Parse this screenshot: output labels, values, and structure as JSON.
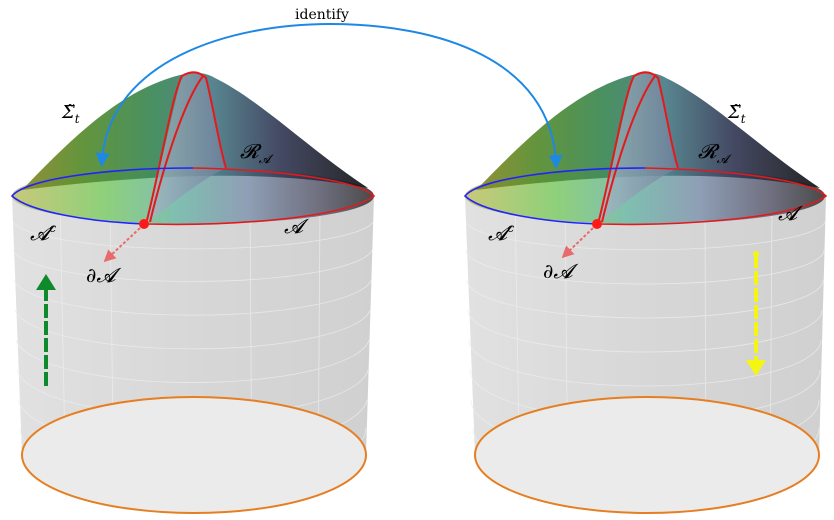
{
  "annotation": {
    "identify_label": "identify"
  },
  "left_panel": {
    "sigma_label": "Σ̃",
    "sigma_sub": "t",
    "region_label": "𝓡",
    "region_sub": "𝓐",
    "subsystem_label": "𝓐",
    "complement_label": "𝓐",
    "complement_sup": "c",
    "boundary_label": "∂𝓐",
    "arrow_direction": "up"
  },
  "right_panel": {
    "sigma_label": "Σ̃",
    "sigma_sub": "t",
    "region_label": "𝓡",
    "region_sub": "𝓐",
    "subsystem_label": "𝓐",
    "complement_label": "𝓐",
    "complement_sup": "c",
    "boundary_label": "∂𝓐",
    "arrow_direction": "down"
  },
  "colors": {
    "identify_arrow": "#1e88e5",
    "boundary_point": "#ff1a1a",
    "boundary_arrow": "#e86a6a",
    "rt_surface_edge": "#e31a1c",
    "a_complement_edge": "#2222ff",
    "base_ellipse": "#e67e22",
    "time_arrow_left": "#0f8a2a",
    "time_arrow_right": "#f5f514"
  }
}
